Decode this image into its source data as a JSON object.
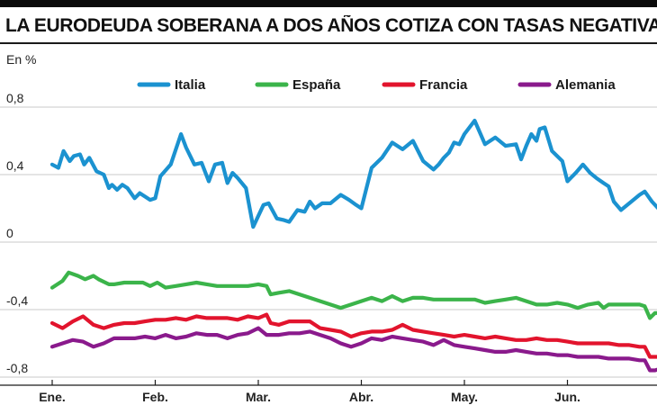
{
  "title": "LA EURODEUDA SOBERANA A DOS AÑOS COTIZA CON TASAS NEGATIVAS",
  "unit_label": "En %",
  "chart_data": {
    "type": "line",
    "title": "LA EURODEUDA SOBERANA A DOS AÑOS COTIZA CON TASAS NEGATIVAS",
    "ylabel": "En %",
    "xlabel": "",
    "ylim": [
      -0.8,
      0.8
    ],
    "xlim": [
      0,
      6.25
    ],
    "yticks": [
      0.8,
      0.4,
      0,
      -0.4,
      -0.8
    ],
    "ytick_labels": [
      "0,8",
      "0,4",
      "0",
      "-0,4",
      "-0,8"
    ],
    "xticks": [
      0,
      1,
      2,
      3,
      4,
      5
    ],
    "xtick_labels": [
      "Ene.",
      "Feb.",
      "Mar.",
      "Abr.",
      "May.",
      "Jun."
    ],
    "grid": "horizontal",
    "legend_position": "top",
    "series": [
      {
        "name": "Italia",
        "color": "#1b92d0",
        "x": [
          0,
          0.06,
          0.11,
          0.17,
          0.21,
          0.27,
          0.31,
          0.36,
          0.43,
          0.5,
          0.55,
          0.58,
          0.63,
          0.68,
          0.73,
          0.8,
          0.85,
          0.9,
          0.95,
          1.0,
          1.05,
          1.15,
          1.25,
          1.3,
          1.38,
          1.45,
          1.52,
          1.58,
          1.65,
          1.7,
          1.75,
          1.8,
          1.88,
          1.95,
          2.05,
          2.1,
          2.18,
          2.25,
          2.3,
          2.38,
          2.45,
          2.5,
          2.55,
          2.62,
          2.7,
          2.8,
          2.88,
          2.95,
          3.0,
          3.1,
          3.2,
          3.3,
          3.4,
          3.5,
          3.6,
          3.7,
          3.75,
          3.8,
          3.85,
          3.9,
          3.95,
          4.0,
          4.1,
          4.2,
          4.3,
          4.4,
          4.5,
          4.55,
          4.6,
          4.65,
          4.7,
          4.73,
          4.78,
          4.85,
          4.95,
          5.0,
          5.08,
          5.15,
          5.22,
          5.28,
          5.35,
          5.4,
          5.45,
          5.52,
          5.6,
          5.7,
          5.75,
          5.82,
          5.88,
          5.93,
          5.98,
          6.03,
          6.08
        ],
        "y": [
          0.46,
          0.44,
          0.54,
          0.48,
          0.51,
          0.52,
          0.46,
          0.5,
          0.42,
          0.4,
          0.32,
          0.34,
          0.31,
          0.34,
          0.32,
          0.26,
          0.29,
          0.27,
          0.25,
          0.26,
          0.39,
          0.46,
          0.64,
          0.56,
          0.46,
          0.47,
          0.36,
          0.46,
          0.47,
          0.35,
          0.41,
          0.38,
          0.32,
          0.09,
          0.22,
          0.23,
          0.14,
          0.13,
          0.12,
          0.19,
          0.18,
          0.24,
          0.2,
          0.23,
          0.23,
          0.28,
          0.25,
          0.22,
          0.2,
          0.44,
          0.5,
          0.59,
          0.55,
          0.6,
          0.48,
          0.43,
          0.46,
          0.5,
          0.53,
          0.59,
          0.58,
          0.64,
          0.72,
          0.58,
          0.62,
          0.57,
          0.58,
          0.49,
          0.57,
          0.64,
          0.6,
          0.67,
          0.68,
          0.54,
          0.48,
          0.36,
          0.41,
          0.46,
          0.41,
          0.38,
          0.35,
          0.33,
          0.24,
          0.19,
          0.23,
          0.28,
          0.3,
          0.24,
          0.2,
          0.23,
          0.25,
          0.28,
          0.27
        ]
      },
      {
        "name": "España",
        "color": "#3bb44a",
        "x": [
          0,
          0.1,
          0.16,
          0.25,
          0.32,
          0.4,
          0.45,
          0.55,
          0.6,
          0.7,
          0.8,
          0.88,
          0.95,
          1.02,
          1.1,
          1.2,
          1.3,
          1.4,
          1.5,
          1.6,
          1.7,
          1.8,
          1.9,
          2.0,
          2.08,
          2.12,
          2.2,
          2.3,
          2.4,
          2.5,
          2.6,
          2.7,
          2.8,
          2.9,
          3.0,
          3.1,
          3.2,
          3.3,
          3.4,
          3.5,
          3.6,
          3.7,
          3.8,
          3.9,
          4.0,
          4.1,
          4.2,
          4.3,
          4.4,
          4.5,
          4.6,
          4.7,
          4.8,
          4.9,
          5.0,
          5.1,
          5.2,
          5.3,
          5.35,
          5.4,
          5.5,
          5.6,
          5.7,
          5.75,
          5.8,
          5.85,
          5.9,
          5.95,
          6.0
        ],
        "y": [
          -0.27,
          -0.23,
          -0.18,
          -0.2,
          -0.22,
          -0.2,
          -0.22,
          -0.25,
          -0.25,
          -0.24,
          -0.24,
          -0.24,
          -0.26,
          -0.24,
          -0.27,
          -0.26,
          -0.25,
          -0.24,
          -0.25,
          -0.26,
          -0.26,
          -0.26,
          -0.26,
          -0.25,
          -0.26,
          -0.31,
          -0.3,
          -0.29,
          -0.31,
          -0.33,
          -0.35,
          -0.37,
          -0.39,
          -0.37,
          -0.35,
          -0.33,
          -0.35,
          -0.32,
          -0.35,
          -0.33,
          -0.33,
          -0.34,
          -0.34,
          -0.34,
          -0.34,
          -0.34,
          -0.36,
          -0.35,
          -0.34,
          -0.33,
          -0.35,
          -0.37,
          -0.37,
          -0.36,
          -0.37,
          -0.39,
          -0.37,
          -0.36,
          -0.39,
          -0.37,
          -0.37,
          -0.37,
          -0.37,
          -0.38,
          -0.45,
          -0.42,
          -0.42,
          -0.4,
          -0.39
        ]
      },
      {
        "name": "Francia",
        "color": "#e2142d",
        "x": [
          0,
          0.1,
          0.2,
          0.3,
          0.4,
          0.5,
          0.6,
          0.7,
          0.8,
          0.9,
          1.0,
          1.1,
          1.2,
          1.3,
          1.4,
          1.5,
          1.6,
          1.7,
          1.8,
          1.9,
          2.0,
          2.08,
          2.12,
          2.2,
          2.3,
          2.4,
          2.5,
          2.6,
          2.7,
          2.8,
          2.9,
          3.0,
          3.1,
          3.2,
          3.3,
          3.4,
          3.5,
          3.6,
          3.7,
          3.8,
          3.9,
          4.0,
          4.1,
          4.2,
          4.3,
          4.4,
          4.5,
          4.6,
          4.7,
          4.8,
          4.9,
          5.0,
          5.1,
          5.2,
          5.3,
          5.4,
          5.5,
          5.6,
          5.7,
          5.75,
          5.8,
          5.85,
          5.9,
          5.95,
          6.0
        ],
        "y": [
          -0.48,
          -0.51,
          -0.47,
          -0.44,
          -0.49,
          -0.51,
          -0.49,
          -0.48,
          -0.48,
          -0.47,
          -0.46,
          -0.46,
          -0.45,
          -0.46,
          -0.44,
          -0.45,
          -0.45,
          -0.45,
          -0.46,
          -0.44,
          -0.45,
          -0.43,
          -0.48,
          -0.49,
          -0.47,
          -0.47,
          -0.47,
          -0.51,
          -0.52,
          -0.53,
          -0.56,
          -0.54,
          -0.53,
          -0.53,
          -0.52,
          -0.49,
          -0.52,
          -0.53,
          -0.54,
          -0.55,
          -0.56,
          -0.55,
          -0.56,
          -0.57,
          -0.56,
          -0.57,
          -0.58,
          -0.58,
          -0.57,
          -0.58,
          -0.58,
          -0.59,
          -0.6,
          -0.6,
          -0.6,
          -0.6,
          -0.61,
          -0.61,
          -0.62,
          -0.62,
          -0.68,
          -0.68,
          -0.68,
          -0.67,
          -0.67
        ]
      },
      {
        "name": "Alemania",
        "color": "#8a1a8c",
        "x": [
          0,
          0.1,
          0.2,
          0.3,
          0.4,
          0.5,
          0.6,
          0.7,
          0.8,
          0.9,
          1.0,
          1.1,
          1.2,
          1.3,
          1.4,
          1.5,
          1.6,
          1.7,
          1.8,
          1.9,
          2.0,
          2.08,
          2.12,
          2.2,
          2.3,
          2.4,
          2.5,
          2.6,
          2.7,
          2.8,
          2.9,
          3.0,
          3.1,
          3.2,
          3.3,
          3.4,
          3.5,
          3.6,
          3.7,
          3.8,
          3.9,
          4.0,
          4.1,
          4.2,
          4.3,
          4.4,
          4.5,
          4.6,
          4.7,
          4.8,
          4.9,
          5.0,
          5.1,
          5.2,
          5.3,
          5.4,
          5.5,
          5.6,
          5.7,
          5.75,
          5.8,
          5.85,
          5.9,
          5.95,
          6.0
        ],
        "y": [
          -0.62,
          -0.6,
          -0.58,
          -0.59,
          -0.62,
          -0.6,
          -0.57,
          -0.57,
          -0.57,
          -0.56,
          -0.57,
          -0.55,
          -0.57,
          -0.56,
          -0.54,
          -0.55,
          -0.55,
          -0.57,
          -0.55,
          -0.54,
          -0.51,
          -0.55,
          -0.55,
          -0.55,
          -0.54,
          -0.54,
          -0.53,
          -0.55,
          -0.57,
          -0.6,
          -0.62,
          -0.6,
          -0.57,
          -0.58,
          -0.56,
          -0.57,
          -0.58,
          -0.59,
          -0.61,
          -0.58,
          -0.61,
          -0.62,
          -0.63,
          -0.64,
          -0.65,
          -0.65,
          -0.64,
          -0.65,
          -0.66,
          -0.66,
          -0.67,
          -0.67,
          -0.68,
          -0.68,
          -0.68,
          -0.69,
          -0.69,
          -0.69,
          -0.7,
          -0.7,
          -0.76,
          -0.76,
          -0.75,
          -0.75,
          -0.75
        ]
      }
    ]
  }
}
